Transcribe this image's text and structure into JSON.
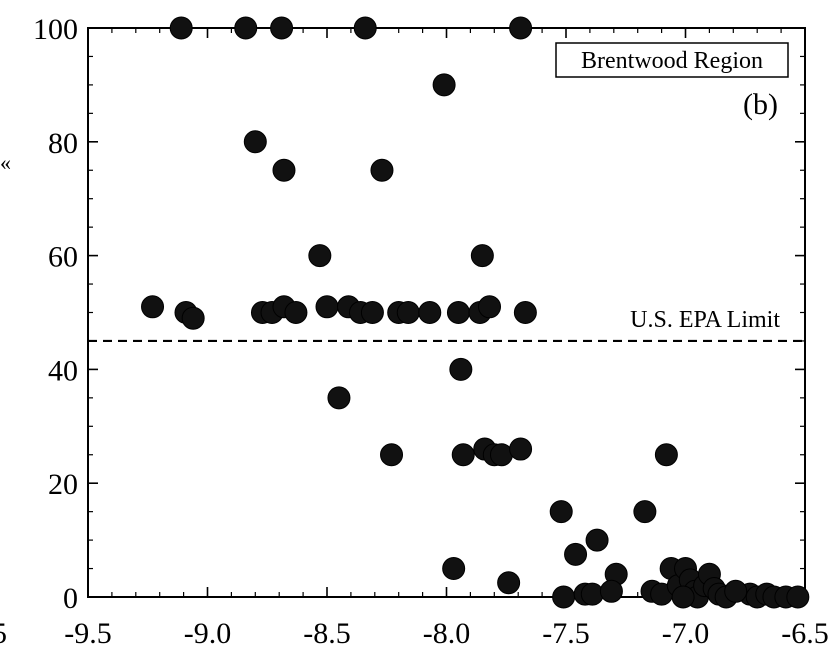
{
  "chart_data": {
    "type": "scatter",
    "title": "",
    "xlabel": "",
    "ylabel": "",
    "xlim": [
      -9.5,
      -6.5
    ],
    "ylim": [
      0,
      100
    ],
    "grid": false,
    "x_ticks": [
      -9.5,
      -9.0,
      -8.5,
      -8.0,
      -7.5,
      -7.0,
      -6.5
    ],
    "x_tick_labels": [
      "-9.5",
      "-9.0",
      "-8.5",
      "-8.0",
      "-7.5",
      "-7.0",
      "-6.5"
    ],
    "y_ticks": [
      0,
      20,
      40,
      60,
      80,
      100
    ],
    "y_tick_labels": [
      "0",
      "20",
      "40",
      "60",
      "80",
      "100"
    ],
    "edge_labels": {
      "left_tick_fragment": "5",
      "ylabel_fragment": "«"
    },
    "panel_label": "(b)",
    "legend_box": {
      "text": "Brentwood Region",
      "position": "top-right"
    },
    "threshold": {
      "value": 45,
      "label": "U.S. EPA Limit",
      "style": "dashed"
    },
    "series": [
      {
        "points": [
          {
            "x": -9.11,
            "y": 100
          },
          {
            "x": -8.84,
            "y": 100
          },
          {
            "x": -8.69,
            "y": 100
          },
          {
            "x": -8.34,
            "y": 100
          },
          {
            "x": -7.69,
            "y": 100
          },
          {
            "x": -8.01,
            "y": 90
          },
          {
            "x": -8.8,
            "y": 80
          },
          {
            "x": -8.68,
            "y": 75
          },
          {
            "x": -8.27,
            "y": 75
          },
          {
            "x": -8.53,
            "y": 60
          },
          {
            "x": -7.85,
            "y": 60
          },
          {
            "x": -9.23,
            "y": 51
          },
          {
            "x": -9.09,
            "y": 50
          },
          {
            "x": -9.06,
            "y": 49
          },
          {
            "x": -8.77,
            "y": 50
          },
          {
            "x": -8.73,
            "y": 50
          },
          {
            "x": -8.68,
            "y": 51
          },
          {
            "x": -8.63,
            "y": 50
          },
          {
            "x": -8.5,
            "y": 51
          },
          {
            "x": -8.41,
            "y": 51
          },
          {
            "x": -8.36,
            "y": 50
          },
          {
            "x": -8.31,
            "y": 50
          },
          {
            "x": -8.2,
            "y": 50
          },
          {
            "x": -8.16,
            "y": 50
          },
          {
            "x": -8.07,
            "y": 50
          },
          {
            "x": -7.95,
            "y": 50
          },
          {
            "x": -7.86,
            "y": 50
          },
          {
            "x": -7.82,
            "y": 51
          },
          {
            "x": -7.67,
            "y": 50
          },
          {
            "x": -7.94,
            "y": 40
          },
          {
            "x": -8.45,
            "y": 35
          },
          {
            "x": -8.23,
            "y": 25
          },
          {
            "x": -7.93,
            "y": 25
          },
          {
            "x": -7.84,
            "y": 26
          },
          {
            "x": -7.8,
            "y": 25
          },
          {
            "x": -7.77,
            "y": 25
          },
          {
            "x": -7.69,
            "y": 26
          },
          {
            "x": -7.08,
            "y": 25
          },
          {
            "x": -7.52,
            "y": 15
          },
          {
            "x": -7.17,
            "y": 15
          },
          {
            "x": -7.37,
            "y": 10
          },
          {
            "x": -7.46,
            "y": 7.5
          },
          {
            "x": -7.97,
            "y": 5
          },
          {
            "x": -7.29,
            "y": 4
          },
          {
            "x": -7.74,
            "y": 2.5
          },
          {
            "x": -7.51,
            "y": 0
          },
          {
            "x": -7.42,
            "y": 0.5
          },
          {
            "x": -7.39,
            "y": 0.5
          },
          {
            "x": -7.31,
            "y": 1
          },
          {
            "x": -7.14,
            "y": 1
          },
          {
            "x": -7.1,
            "y": 0.5
          },
          {
            "x": -7.06,
            "y": 5
          },
          {
            "x": -7.03,
            "y": 2
          },
          {
            "x": -7.0,
            "y": 5
          },
          {
            "x": -6.98,
            "y": 3
          },
          {
            "x": -6.96,
            "y": 1
          },
          {
            "x": -6.95,
            "y": 0
          },
          {
            "x": -6.92,
            "y": 2
          },
          {
            "x": -6.9,
            "y": 4
          },
          {
            "x": -6.88,
            "y": 1.5
          },
          {
            "x": -6.86,
            "y": 0.5
          },
          {
            "x": -6.83,
            "y": 0
          },
          {
            "x": -6.73,
            "y": 0.5
          },
          {
            "x": -6.7,
            "y": 0
          },
          {
            "x": -6.66,
            "y": 0.5
          },
          {
            "x": -6.63,
            "y": 0
          },
          {
            "x": -6.58,
            "y": 0
          },
          {
            "x": -6.53,
            "y": 0
          },
          {
            "x": -7.01,
            "y": 0
          },
          {
            "x": -6.79,
            "y": 1
          }
        ]
      }
    ]
  }
}
